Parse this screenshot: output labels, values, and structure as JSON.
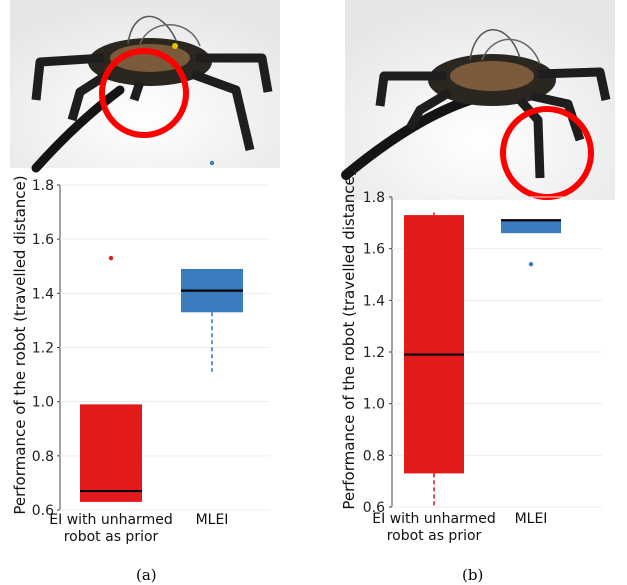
{
  "captions": [
    "(a)",
    "(b)"
  ],
  "colors": {
    "ei": "#e31a1c",
    "mlei": "#3a7dbf",
    "median": "#000000",
    "axis": "#444444"
  },
  "photos": [
    {
      "name": "hexapod-robot-photo-a",
      "highlight": "cable-attachment-on-body"
    },
    {
      "name": "hexapod-robot-photo-b",
      "highlight": "damaged-leg-tip"
    }
  ],
  "chart_data": [
    {
      "type": "box",
      "title": "",
      "ylabel": "Performance of the robot (travelled distance)",
      "xlabel": "",
      "ylim": [
        0.6,
        1.8
      ],
      "yticks": [
        "0.6",
        "0.8",
        "1.0",
        "1.2",
        "1.4",
        "1.6",
        "1.8"
      ],
      "categories": [
        "EI with unharmed robot as prior",
        "MLEI"
      ],
      "category_lines": [
        [
          "EI with unharmed",
          "robot as prior"
        ],
        [
          "MLEI"
        ]
      ],
      "series": [
        {
          "category": "EI with unharmed robot as prior",
          "q1": 0.63,
          "median": 0.67,
          "q3": 0.99,
          "whisker_low": 0.63,
          "whisker_high": 0.99,
          "outliers": [
            1.53
          ]
        },
        {
          "category": "MLEI",
          "q1": 1.33,
          "median": 1.41,
          "q3": 1.49,
          "whisker_low": 1.11,
          "whisker_high": 1.49,
          "outliers": []
        }
      ]
    },
    {
      "type": "box",
      "title": "",
      "ylabel": "Performance of the robot (travelled distance)",
      "xlabel": "",
      "ylim": [
        0.6,
        1.8
      ],
      "yticks": [
        "0.6",
        "0.8",
        "1.0",
        "1.2",
        "1.4",
        "1.6",
        "1.8"
      ],
      "categories": [
        "EI with unharmed robot as prior",
        "MLEI"
      ],
      "category_lines": [
        [
          "EI with unharmed",
          "robot as prior"
        ],
        [
          "MLEI"
        ]
      ],
      "series": [
        {
          "category": "EI with unharmed robot as prior",
          "q1": 0.73,
          "median": 1.19,
          "q3": 1.73,
          "whisker_low": 0.6,
          "whisker_high": 1.74,
          "outliers": []
        },
        {
          "category": "MLEI",
          "q1": 1.66,
          "median": 1.71,
          "q3": 1.71,
          "whisker_low": 1.66,
          "whisker_high": 1.71,
          "outliers": [
            1.54
          ]
        }
      ]
    }
  ]
}
